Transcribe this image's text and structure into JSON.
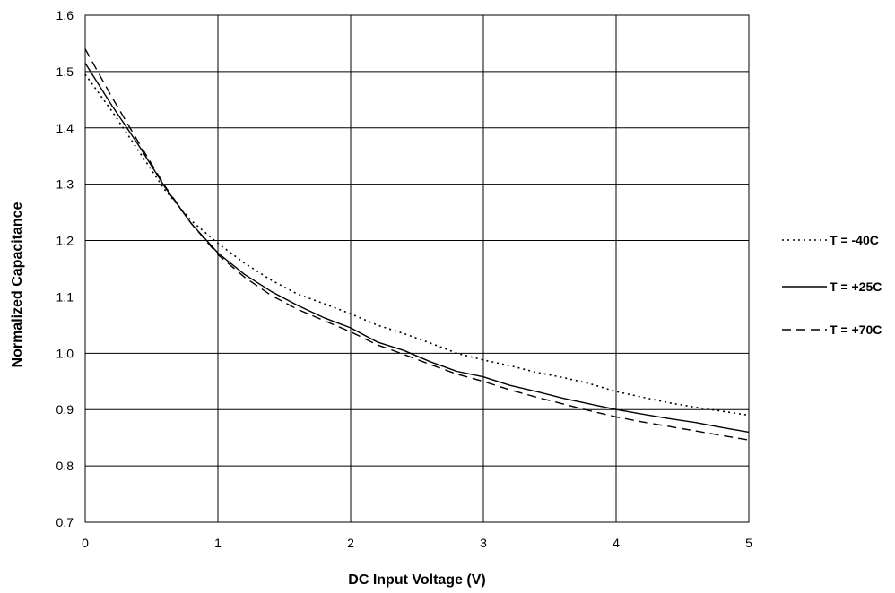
{
  "chart_data": {
    "type": "line",
    "title": "",
    "xlabel": "DC Input Voltage (V)",
    "ylabel": "Normalized Capacitance",
    "xlim": [
      0,
      5
    ],
    "ylim": [
      0.7,
      1.6
    ],
    "xticks": [
      "0",
      "1",
      "2",
      "3",
      "4",
      "5"
    ],
    "yticks": [
      "0.7",
      "0.8",
      "0.9",
      "1.0",
      "1.1",
      "1.2",
      "1.3",
      "1.4",
      "1.5",
      "1.6"
    ],
    "grid": true,
    "legend_position": "right",
    "series": [
      {
        "name": "T = -40C",
        "dash": "dotted",
        "color": "#000000",
        "x": [
          0,
          0.2,
          0.4,
          0.6,
          0.8,
          1.0,
          1.2,
          1.4,
          1.6,
          1.8,
          2.0,
          2.2,
          2.4,
          2.6,
          2.8,
          3.0,
          3.2,
          3.4,
          3.6,
          3.8,
          4.0,
          4.2,
          4.4,
          4.6,
          4.8,
          5.0
        ],
        "y": [
          1.495,
          1.43,
          1.36,
          1.29,
          1.235,
          1.195,
          1.16,
          1.13,
          1.105,
          1.088,
          1.07,
          1.05,
          1.035,
          1.018,
          1.0,
          0.988,
          0.978,
          0.966,
          0.957,
          0.946,
          0.932,
          0.922,
          0.912,
          0.904,
          0.897,
          0.89
        ]
      },
      {
        "name": "T = +25C",
        "dash": "solid",
        "color": "#000000",
        "x": [
          0,
          0.2,
          0.4,
          0.6,
          0.8,
          1.0,
          1.2,
          1.4,
          1.6,
          1.8,
          2.0,
          2.2,
          2.4,
          2.6,
          2.8,
          3.0,
          3.2,
          3.4,
          3.6,
          3.8,
          4.0,
          4.2,
          4.4,
          4.6,
          4.8,
          5.0
        ],
        "y": [
          1.515,
          1.44,
          1.37,
          1.295,
          1.23,
          1.178,
          1.14,
          1.11,
          1.085,
          1.063,
          1.045,
          1.02,
          1.005,
          0.985,
          0.968,
          0.958,
          0.943,
          0.932,
          0.92,
          0.91,
          0.9,
          0.892,
          0.884,
          0.877,
          0.868,
          0.86
        ]
      },
      {
        "name": "T = +70C",
        "dash": "dashed",
        "color": "#000000",
        "x": [
          0,
          0.2,
          0.4,
          0.6,
          0.8,
          1.0,
          1.2,
          1.4,
          1.6,
          1.8,
          2.0,
          2.2,
          2.4,
          2.6,
          2.8,
          3.0,
          3.2,
          3.4,
          3.6,
          3.8,
          4.0,
          4.2,
          4.4,
          4.6,
          4.8,
          5.0
        ],
        "y": [
          1.54,
          1.455,
          1.375,
          1.297,
          1.23,
          1.175,
          1.135,
          1.103,
          1.078,
          1.058,
          1.038,
          1.015,
          0.998,
          0.98,
          0.963,
          0.95,
          0.935,
          0.922,
          0.91,
          0.898,
          0.887,
          0.878,
          0.87,
          0.862,
          0.854,
          0.846
        ]
      }
    ]
  }
}
